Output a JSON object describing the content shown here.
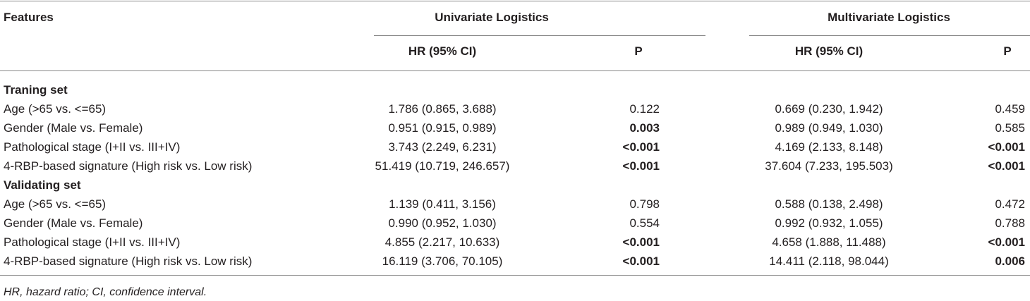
{
  "header": {
    "features": "Features",
    "univariate": "Univariate Logistics",
    "multivariate": "Multivariate Logistics",
    "hr": "HR (95% CI)",
    "p": "P"
  },
  "sections": [
    {
      "title": "Traning set",
      "rows": [
        {
          "feature": "Age (>65 vs. <=65)",
          "uni_hr": "1.786 (0.865, 3.688)",
          "uni_p": "0.122",
          "multi_hr": "0.669 (0.230, 1.942)",
          "multi_p": "0.459",
          "bold": [
            false,
            false
          ]
        },
        {
          "feature": "Gender (Male vs. Female)",
          "uni_hr": "0.951 (0.915, 0.989)",
          "uni_p": "0.003",
          "multi_hr": "0.989 (0.949, 1.030)",
          "multi_p": "0.585",
          "bold": [
            true,
            false
          ]
        },
        {
          "feature": "Pathological stage (I+II vs. III+IV)",
          "uni_hr": "3.743 (2.249, 6.231)",
          "uni_p": "<0.001",
          "multi_hr": "4.169 (2.133, 8.148)",
          "multi_p": "<0.001",
          "bold": [
            true,
            true
          ]
        },
        {
          "feature": "4-RBP-based signature (High risk vs. Low risk)",
          "uni_hr": "51.419 (10.719, 246.657)",
          "uni_p": "<0.001",
          "multi_hr": "37.604 (7.233, 195.503)",
          "multi_p": "<0.001",
          "bold": [
            true,
            true
          ]
        }
      ]
    },
    {
      "title": "Validating set",
      "rows": [
        {
          "feature": "Age (>65 vs. <=65)",
          "uni_hr": "1.139 (0.411, 3.156)",
          "uni_p": "0.798",
          "multi_hr": "0.588 (0.138, 2.498)",
          "multi_p": "0.472",
          "bold": [
            false,
            false
          ]
        },
        {
          "feature": "Gender (Male vs. Female)",
          "uni_hr": "0.990 (0.952, 1.030)",
          "uni_p": "0.554",
          "multi_hr": "0.992 (0.932, 1.055)",
          "multi_p": "0.788",
          "bold": [
            false,
            false
          ]
        },
        {
          "feature": "Pathological stage (I+II vs. III+IV)",
          "uni_hr": "4.855 (2.217, 10.633)",
          "uni_p": "<0.001",
          "multi_hr": "4.658 (1.888, 11.488)",
          "multi_p": "<0.001",
          "bold": [
            true,
            true
          ]
        },
        {
          "feature": "4-RBP-based signature (High risk vs. Low risk)",
          "uni_hr": "16.119 (3.706, 70.105)",
          "uni_p": "<0.001",
          "multi_hr": "14.411 (2.118, 98.044)",
          "multi_p": "0.006",
          "bold": [
            true,
            true
          ]
        }
      ]
    }
  ],
  "footnote": "HR, hazard ratio; CI, confidence interval."
}
